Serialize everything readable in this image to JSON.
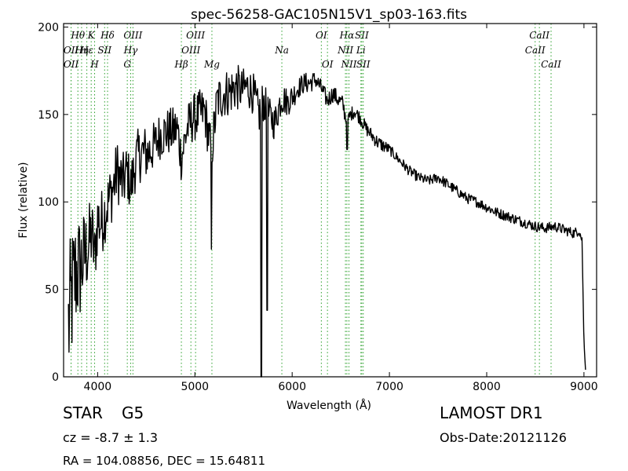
{
  "chart_data": {
    "type": "line",
    "title": "spec-56258-GAC105N15V1_sp03-163.fits",
    "xlabel": "Wavelength (Å)",
    "ylabel": "Flux (relative)",
    "xlim": [
      3650,
      9130
    ],
    "ylim": [
      0,
      202
    ],
    "xticks": [
      4000,
      5000,
      6000,
      7000,
      8000,
      9000
    ],
    "yticks": [
      0,
      50,
      100,
      150,
      200
    ],
    "grid": false,
    "line_color": "#000000",
    "marker_color": "#2ca02c",
    "spectrum": {
      "x": [
        3700,
        3740,
        3780,
        3820,
        3860,
        3900,
        3940,
        3970,
        4000,
        4040,
        4080,
        4120,
        4160,
        4200,
        4260,
        4300,
        4340,
        4400,
        4460,
        4520,
        4580,
        4640,
        4700,
        4760,
        4820,
        4860,
        4920,
        4980,
        5040,
        5100,
        5170,
        5230,
        5300,
        5360,
        5420,
        5480,
        5540,
        5600,
        5660,
        5700,
        5760,
        5820,
        5890,
        5950,
        6000,
        6060,
        6120,
        6180,
        6240,
        6300,
        6360,
        6420,
        6480,
        6520,
        6563,
        6600,
        6640,
        6700,
        6760,
        6820,
        6880,
        6940,
        7000,
        7100,
        7200,
        7300,
        7400,
        7500,
        7600,
        7700,
        7800,
        7900,
        8000,
        8100,
        8200,
        8300,
        8400,
        8500,
        8600,
        8700,
        8800,
        8900,
        8950,
        8980,
        9000,
        9020
      ],
      "y": [
        28,
        48,
        60,
        62,
        68,
        74,
        82,
        68,
        90,
        88,
        95,
        102,
        108,
        118,
        110,
        118,
        108,
        125,
        128,
        128,
        132,
        138,
        140,
        140,
        142,
        125,
        142,
        148,
        150,
        152,
        128,
        158,
        162,
        163,
        166,
        164,
        166,
        162,
        150,
        158,
        150,
        145,
        160,
        157,
        160,
        165,
        168,
        168,
        170,
        165,
        158,
        162,
        158,
        156,
        145,
        150,
        152,
        148,
        142,
        138,
        134,
        132,
        130,
        124,
        118,
        114,
        112,
        114,
        110,
        106,
        102,
        100,
        97,
        94,
        92,
        90,
        88,
        86,
        85,
        86,
        84,
        82,
        84,
        78,
        20,
        0
      ],
      "noise": [
        44,
        40,
        36,
        32,
        28,
        24,
        22,
        20,
        20,
        20,
        18,
        18,
        18,
        18,
        18,
        16,
        16,
        16,
        16,
        16,
        14,
        14,
        14,
        14,
        14,
        14,
        14,
        14,
        14,
        14,
        14,
        14,
        14,
        14,
        14,
        12,
        12,
        12,
        12,
        12,
        10,
        10,
        10,
        8,
        8,
        6,
        6,
        6,
        5,
        5,
        5,
        5,
        5,
        5,
        5,
        4,
        4,
        4,
        4,
        4,
        4,
        4,
        3,
        3,
        3,
        3,
        3,
        3,
        3,
        3,
        3,
        3,
        3,
        3,
        3,
        3,
        3,
        3,
        3,
        3,
        3,
        3,
        3,
        3,
        0,
        0
      ]
    },
    "dips": [
      {
        "x": 5170,
        "y": 73
      },
      {
        "x": 5685,
        "y": 0
      },
      {
        "x": 5745,
        "y": 38
      },
      {
        "x": 6563,
        "y": 130
      }
    ],
    "line_markers": [
      {
        "label": "OII",
        "wavelength": 3727,
        "row": 1
      },
      {
        "label": "Hθ",
        "wavelength": 3797,
        "row": 0
      },
      {
        "label": "OII",
        "wavelength": 3727,
        "row": 2
      },
      {
        "label": "Hη",
        "wavelength": 3835,
        "row": 1
      },
      {
        "label": "Hε",
        "wavelength": 3889,
        "row": 1
      },
      {
        "label": "K",
        "wavelength": 3934,
        "row": 0
      },
      {
        "label": "SII",
        "wavelength": 4072,
        "row": 1
      },
      {
        "label": "H",
        "wavelength": 3969,
        "row": 2
      },
      {
        "label": "Hδ",
        "wavelength": 4102,
        "row": 0
      },
      {
        "label": "OIII",
        "wavelength": 4363,
        "row": 0
      },
      {
        "label": "Hγ",
        "wavelength": 4340,
        "row": 1
      },
      {
        "label": "G",
        "wavelength": 4305,
        "row": 2
      },
      {
        "label": "OIII",
        "wavelength": 5007,
        "row": 0
      },
      {
        "label": "OIII",
        "wavelength": 4959,
        "row": 1
      },
      {
        "label": "Hβ",
        "wavelength": 4861,
        "row": 2
      },
      {
        "label": "Mg",
        "wavelength": 5175,
        "row": 2
      },
      {
        "label": "Na",
        "wavelength": 5894,
        "row": 1
      },
      {
        "label": "OI",
        "wavelength": 6300,
        "row": 0
      },
      {
        "label": "OI",
        "wavelength": 6363,
        "row": 2
      },
      {
        "label": "Hα",
        "wavelength": 6563,
        "row": 0
      },
      {
        "label": "SII",
        "wavelength": 6716,
        "row": 0
      },
      {
        "label": "NII",
        "wavelength": 6548,
        "row": 1
      },
      {
        "label": "Li",
        "wavelength": 6707,
        "row": 1
      },
      {
        "label": "NII",
        "wavelength": 6584,
        "row": 2
      },
      {
        "label": "SII",
        "wavelength": 6731,
        "row": 2
      },
      {
        "label": "CaII",
        "wavelength": 8542,
        "row": 0
      },
      {
        "label": "CaII",
        "wavelength": 8498,
        "row": 1
      },
      {
        "label": "CaII",
        "wavelength": 8662,
        "row": 2
      }
    ]
  },
  "info": {
    "object_class": "STAR",
    "subclass": "G5",
    "redshift_text": "cz = -8.7 ± 1.3",
    "coords_text": "RA = 104.08856, DEC = 15.64811",
    "survey": "LAMOST DR1",
    "obs_date": "Obs-Date:20121126"
  }
}
